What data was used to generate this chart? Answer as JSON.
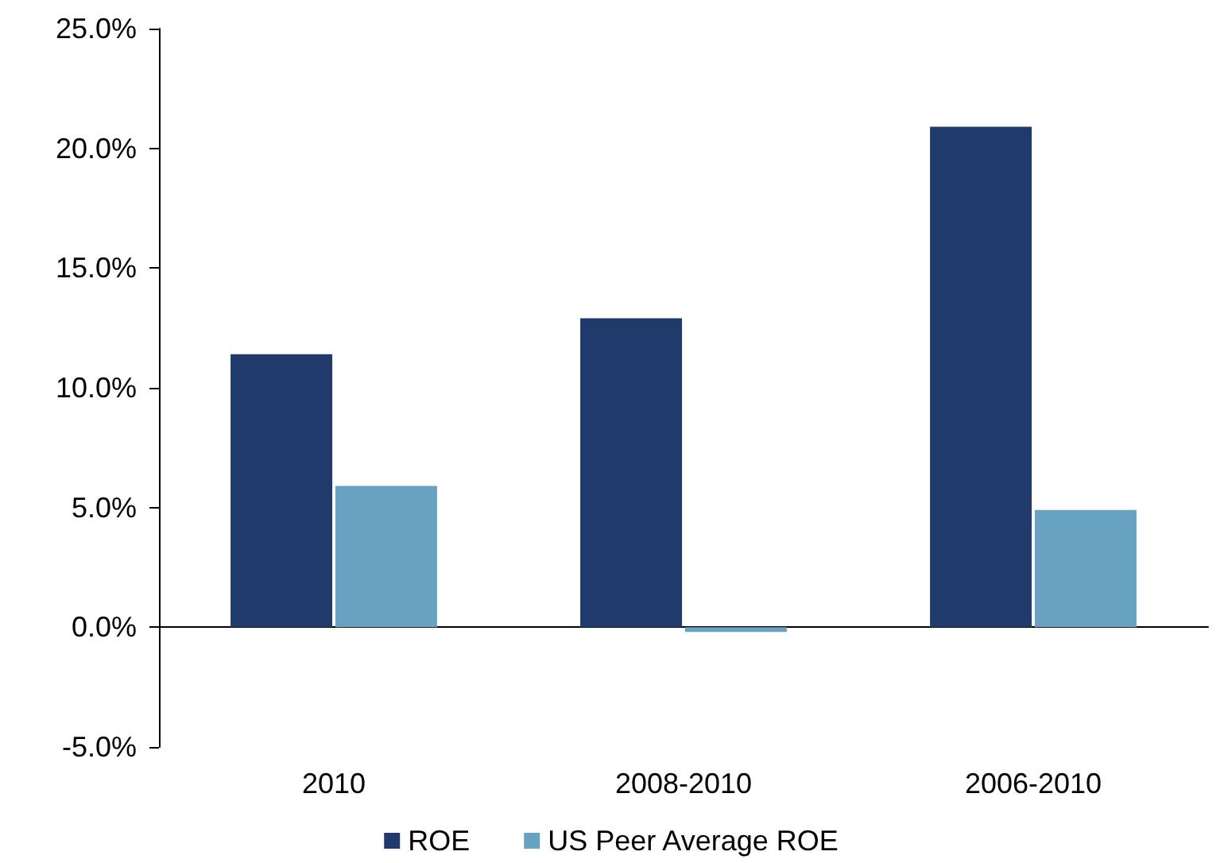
{
  "chart_data": {
    "type": "bar",
    "categories": [
      "2010",
      "2008-2010",
      "2006-2010"
    ],
    "series": [
      {
        "name": "ROE",
        "color": "#1f3a6b",
        "values": [
          11.4,
          12.9,
          20.9
        ]
      },
      {
        "name": "US Peer Average ROE",
        "color": "#67a3c1",
        "values": [
          5.9,
          -0.2,
          4.9
        ]
      }
    ],
    "ylim": [
      -5,
      25
    ],
    "yticks": [
      {
        "value": -5,
        "label": "-5.0%"
      },
      {
        "value": 0,
        "label": "0.0%"
      },
      {
        "value": 5,
        "label": "5.0%"
      },
      {
        "value": 10,
        "label": "10.0%"
      },
      {
        "value": 15,
        "label": "15.0%"
      },
      {
        "value": 20,
        "label": "20.0%"
      },
      {
        "value": 25,
        "label": "25.0%"
      }
    ],
    "legend": "bottom"
  }
}
